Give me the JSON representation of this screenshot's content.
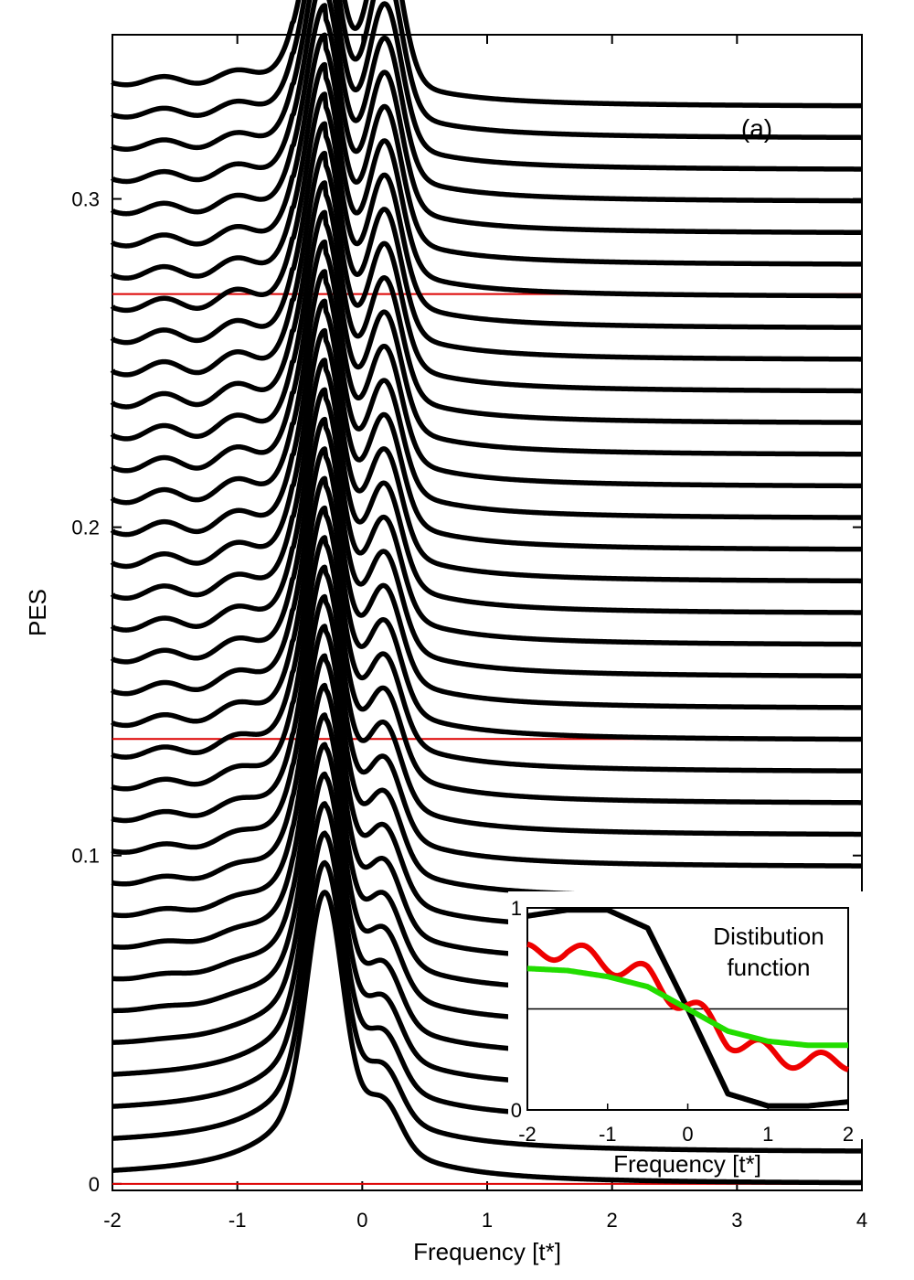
{
  "chart_data": [
    {
      "type": "line",
      "panel_label": "(a)",
      "xlabel": "Frequency [t*]",
      "ylabel": "PES",
      "xlim": [
        -2,
        4
      ],
      "ylim": [
        -0.002,
        0.35
      ],
      "xticks": [
        -2,
        -1,
        0,
        1,
        2,
        3,
        4
      ],
      "yticks": [
        0,
        0.1,
        0.2,
        0.3
      ],
      "ytick_labels": [
        "0",
        "0.1",
        "0.2",
        "0.3"
      ],
      "grid": false,
      "series_description": "waterfall of 35 PES curves offset vertically; each has a peak near -0.3 t* and a second peak near 0.2 t*",
      "curve_count": 35,
      "offset_step": 0.00965,
      "first_peak_height": 0.0888,
      "last_peak_height": 0.0662,
      "right_tail_value_last": 0.0,
      "reference_lines": [
        {
          "y": 0.0,
          "color": "#dd0000"
        },
        {
          "y": 0.1355,
          "color": "#dd0000"
        },
        {
          "y": 0.271,
          "color": "#dd0000"
        }
      ],
      "line_color": "#000000"
    },
    {
      "type": "line",
      "title": "Distibution function",
      "title_line1": "Distibution",
      "title_line2": "function",
      "xlabel": "Frequency [t*]",
      "xlim": [
        -2,
        2
      ],
      "ylim": [
        0,
        1
      ],
      "xticks": [
        -2,
        -1,
        0,
        1,
        2
      ],
      "yticks": [
        0,
        1
      ],
      "ytick_labels": [
        "0",
        "1"
      ],
      "reference_line_y": 0.5,
      "series": [
        {
          "color": "#000000",
          "x": [
            -2,
            -1.5,
            -1,
            -0.5,
            0,
            0.5,
            1,
            1.5,
            2
          ],
          "values": [
            0.96,
            0.99,
            0.99,
            0.9,
            0.5,
            0.08,
            0.02,
            0.02,
            0.04
          ]
        },
        {
          "color": "#ee0000",
          "x": [
            -2,
            -1.5,
            -1,
            -0.5,
            0,
            0.5,
            1,
            1.5,
            2
          ],
          "values": [
            0.78,
            0.79,
            0.73,
            0.66,
            0.52,
            0.36,
            0.28,
            0.24,
            0.24
          ]
        },
        {
          "color": "#22dd00",
          "x": [
            -2,
            -1.5,
            -1,
            -0.5,
            0,
            0.5,
            1,
            1.5,
            2
          ],
          "values": [
            0.7,
            0.69,
            0.66,
            0.61,
            0.5,
            0.39,
            0.34,
            0.32,
            0.32
          ]
        }
      ]
    }
  ]
}
